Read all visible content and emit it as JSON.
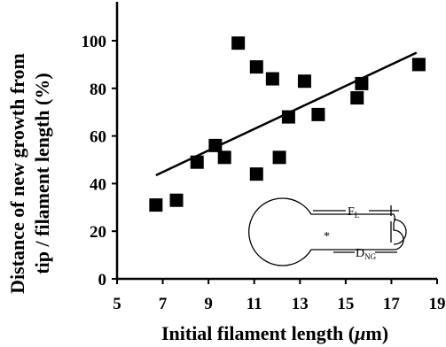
{
  "chart_data": {
    "type": "scatter",
    "title": "",
    "xlabel": "Initial filament length (",
    "xlabel_unit": "μ",
    "xlabel_tail": "m)",
    "ylabel_line1": "Distance of new growth from",
    "ylabel_line2": "tip / filament length (%)",
    "xlim": [
      5,
      19
    ],
    "ylim": [
      0,
      100
    ],
    "xticks": [
      5,
      7,
      9,
      11,
      13,
      15,
      17,
      19
    ],
    "yticks": [
      0,
      20,
      40,
      60,
      80,
      100
    ],
    "grid": false,
    "legend": "none",
    "marker": "square",
    "marker_color": "#000000",
    "points": [
      {
        "x": 6.7,
        "y": 31
      },
      {
        "x": 7.6,
        "y": 33
      },
      {
        "x": 8.5,
        "y": 49
      },
      {
        "x": 9.3,
        "y": 56
      },
      {
        "x": 9.7,
        "y": 51
      },
      {
        "x": 10.3,
        "y": 99
      },
      {
        "x": 11.1,
        "y": 89
      },
      {
        "x": 11.1,
        "y": 44
      },
      {
        "x": 11.8,
        "y": 84
      },
      {
        "x": 12.1,
        "y": 51
      },
      {
        "x": 12.5,
        "y": 68
      },
      {
        "x": 13.2,
        "y": 83
      },
      {
        "x": 13.8,
        "y": 69
      },
      {
        "x": 15.5,
        "y": 76
      },
      {
        "x": 15.7,
        "y": 82
      },
      {
        "x": 18.2,
        "y": 90
      }
    ],
    "trendline": {
      "x": [
        6.7,
        18.1
      ],
      "y": [
        43.5,
        95
      ]
    },
    "inset": {
      "label_top_main": "F",
      "label_top_sub": "L",
      "label_bottom_main": "D",
      "label_bottom_sub": "NG",
      "marker": "*"
    }
  }
}
